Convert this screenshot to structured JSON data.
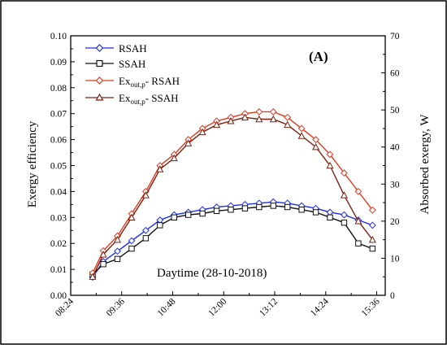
{
  "chart_data": {
    "type": "line",
    "panel_label": "(A)",
    "annotation": "Daytime (28-10-2018)",
    "xlabel": "",
    "ylabel_left": "Exergy efficiency",
    "ylabel_right": "Absorbed exergy, W",
    "x_ticks": [
      "08:24",
      "09:36",
      "10:48",
      "12:00",
      "13:12",
      "14:24",
      "15:36"
    ],
    "x_tick_minutes": [
      504,
      576,
      648,
      720,
      792,
      864,
      936
    ],
    "xlim_minutes": [
      504,
      948
    ],
    "ylim_left": [
      0,
      0.1
    ],
    "y_ticks_left": [
      "0.00",
      "0.01",
      "0.02",
      "0.03",
      "0.04",
      "0.05",
      "0.06",
      "0.07",
      "0.08",
      "0.09",
      "0.10"
    ],
    "ylim_right": [
      0,
      70
    ],
    "y_ticks_right": [
      "0",
      "10",
      "20",
      "30",
      "40",
      "50",
      "60",
      "70"
    ],
    "grid": false,
    "legend_position": "top-left",
    "x": [
      "08:55",
      "09:10",
      "09:30",
      "09:50",
      "10:10",
      "10:30",
      "10:50",
      "11:10",
      "11:30",
      "11:50",
      "12:10",
      "12:30",
      "12:50",
      "13:10",
      "13:30",
      "13:50",
      "14:10",
      "14:30",
      "14:50",
      "15:10",
      "15:30"
    ],
    "series": [
      {
        "name": "RSAH",
        "axis": "left",
        "color": "#1f2fe0",
        "marker": "diamond",
        "values": [
          0.007,
          0.013,
          0.017,
          0.021,
          0.025,
          0.029,
          0.031,
          0.032,
          0.033,
          0.034,
          0.0345,
          0.035,
          0.0355,
          0.036,
          0.0355,
          0.0345,
          0.0335,
          0.032,
          0.031,
          0.029,
          0.027
        ]
      },
      {
        "name": "SSAH",
        "axis": "left",
        "color": "#111111",
        "marker": "square",
        "values": [
          0.008,
          0.012,
          0.014,
          0.018,
          0.022,
          0.027,
          0.03,
          0.031,
          0.0315,
          0.0325,
          0.033,
          0.0335,
          0.034,
          0.0345,
          0.034,
          0.033,
          0.032,
          0.03,
          0.028,
          0.02,
          0.018
        ]
      },
      {
        "name_main": "Ex",
        "name_sub": "out,p",
        "name_rest": "- RSAH",
        "axis": "right",
        "color": "#e03a20",
        "marker": "diamond",
        "values": [
          6,
          12,
          16,
          22,
          28,
          35,
          38,
          42,
          45,
          47,
          48,
          49,
          49.5,
          49.5,
          48,
          45,
          42,
          38,
          33,
          28,
          23
        ]
      },
      {
        "name_main": "Ex",
        "name_sub": "out,p",
        "name_rest": "- SSAH",
        "axis": "right",
        "color": "#7a2010",
        "marker": "triangle",
        "values": [
          5,
          11,
          15,
          21,
          27,
          34,
          37,
          41,
          44,
          46,
          47,
          48,
          47.5,
          47.5,
          46,
          43,
          40,
          35,
          27,
          20,
          15
        ]
      }
    ]
  }
}
